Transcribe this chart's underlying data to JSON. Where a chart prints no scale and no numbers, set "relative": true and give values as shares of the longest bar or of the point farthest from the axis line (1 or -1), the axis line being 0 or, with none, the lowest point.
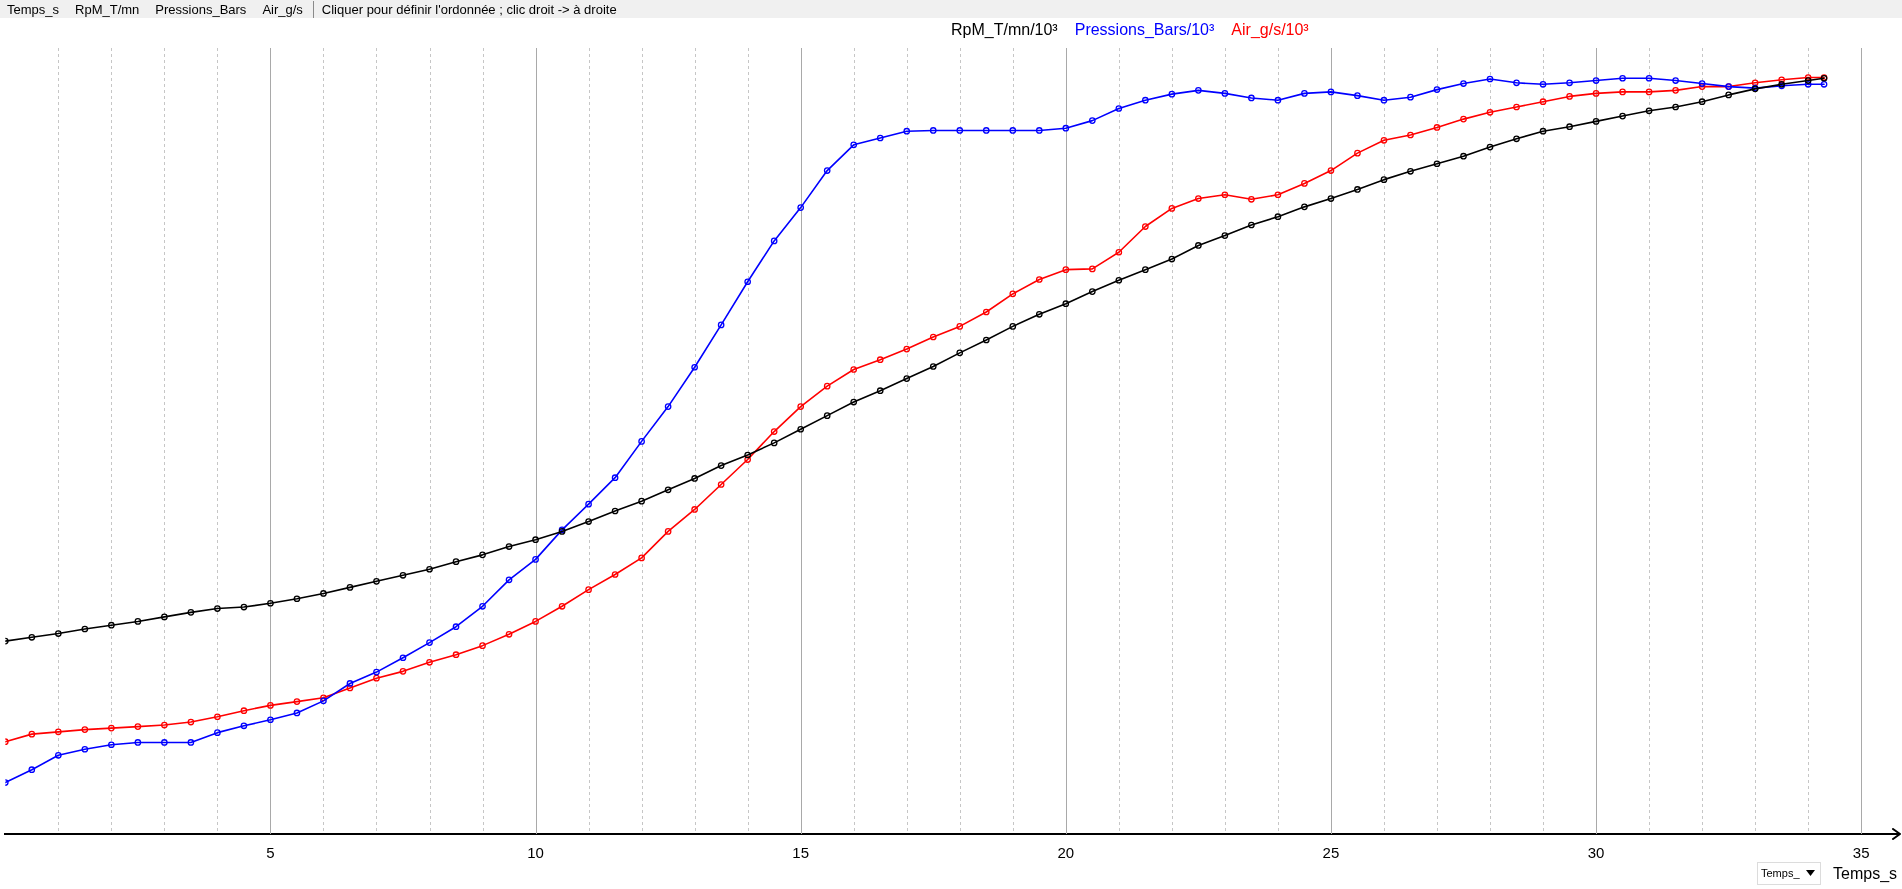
{
  "chart_data": {
    "type": "line",
    "xlabel": "Temps_s",
    "annotations": [
      "Temps_s",
      "RpM_T/mn",
      "Pressions_Bars",
      "Air_g/s",
      "Cliquer pour définir l'ordonnée ; clic droit -> à droite",
      "Temps_"
    ],
    "relative": true,
    "x": [
      0,
      0.5,
      1,
      1.5,
      2,
      2.5,
      3,
      3.5,
      4,
      4.5,
      5,
      5.5,
      6,
      6.5,
      7,
      7.5,
      8,
      8.5,
      9,
      9.5,
      10,
      10.5,
      11,
      11.5,
      12,
      12.5,
      13,
      13.5,
      14,
      14.5,
      15,
      15.5,
      16,
      16.5,
      17,
      17.5,
      18,
      18.5,
      19,
      19.5,
      20,
      20.5,
      21,
      21.5,
      22,
      22.5,
      23,
      23.5,
      24,
      24.5,
      25,
      25.5,
      26,
      26.5,
      27,
      27.5,
      28,
      28.5,
      29,
      29.5,
      30,
      30.5,
      31,
      31.5,
      32,
      32.5,
      33,
      33.5,
      34,
      34.3
    ],
    "xlim": [
      0,
      35.6
    ],
    "xticks": [
      {
        "value": 1,
        "label": null
      },
      {
        "value": 2,
        "label": null
      },
      {
        "value": 3,
        "label": null
      },
      {
        "value": 4,
        "label": null
      },
      5,
      {
        "value": 6,
        "label": null
      },
      {
        "value": 7,
        "label": null
      },
      {
        "value": 8,
        "label": null
      },
      {
        "value": 9,
        "label": null
      },
      10,
      {
        "value": 11,
        "label": null
      },
      {
        "value": 12,
        "label": null
      },
      {
        "value": 13,
        "label": null
      },
      {
        "value": 14,
        "label": null
      },
      15,
      {
        "value": 16,
        "label": null
      },
      {
        "value": 17,
        "label": null
      },
      {
        "value": 18,
        "label": null
      },
      {
        "value": 19,
        "label": null
      },
      20,
      {
        "value": 21,
        "label": null
      },
      {
        "value": 22,
        "label": null
      },
      {
        "value": 23,
        "label": null
      },
      {
        "value": 24,
        "label": null
      },
      25,
      {
        "value": 26,
        "label": null
      },
      {
        "value": 27,
        "label": null
      },
      {
        "value": 28,
        "label": null
      },
      {
        "value": 29,
        "label": null
      },
      30,
      {
        "value": 31,
        "label": null
      },
      {
        "value": 32,
        "label": null
      },
      {
        "value": 33,
        "label": null
      },
      {
        "value": 34,
        "label": null
      },
      35
    ],
    "grid": "x",
    "legend": "top",
    "marker": "circle",
    "line_style": "solid",
    "series": [
      {
        "name": "RpM_T/mn/10³",
        "color": "#000000",
        "values": [
          0.255,
          0.26,
          0.265,
          0.271,
          0.276,
          0.281,
          0.287,
          0.293,
          0.298,
          0.3,
          0.305,
          0.311,
          0.318,
          0.326,
          0.334,
          0.342,
          0.35,
          0.36,
          0.369,
          0.38,
          0.389,
          0.4,
          0.413,
          0.427,
          0.44,
          0.455,
          0.47,
          0.487,
          0.501,
          0.517,
          0.535,
          0.553,
          0.571,
          0.586,
          0.602,
          0.618,
          0.636,
          0.653,
          0.671,
          0.687,
          0.701,
          0.717,
          0.732,
          0.746,
          0.76,
          0.778,
          0.791,
          0.805,
          0.816,
          0.829,
          0.84,
          0.852,
          0.865,
          0.876,
          0.886,
          0.896,
          0.908,
          0.919,
          0.929,
          0.935,
          0.942,
          0.949,
          0.956,
          0.961,
          0.968,
          0.977,
          0.985,
          0.991,
          0.996,
          0.999
        ]
      },
      {
        "name": "Pressions_Bars/10³",
        "color": "#0000ff",
        "values": [
          0.068,
          0.085,
          0.104,
          0.112,
          0.118,
          0.121,
          0.121,
          0.121,
          0.134,
          0.143,
          0.151,
          0.16,
          0.176,
          0.199,
          0.214,
          0.233,
          0.253,
          0.274,
          0.301,
          0.336,
          0.363,
          0.402,
          0.436,
          0.471,
          0.519,
          0.565,
          0.617,
          0.673,
          0.73,
          0.784,
          0.828,
          0.877,
          0.911,
          0.92,
          0.929,
          0.93,
          0.93,
          0.93,
          0.93,
          0.93,
          0.933,
          0.943,
          0.959,
          0.97,
          0.978,
          0.983,
          0.979,
          0.973,
          0.97,
          0.979,
          0.981,
          0.976,
          0.97,
          0.974,
          0.984,
          0.992,
          0.998,
          0.993,
          0.991,
          0.993,
          0.996,
          0.999,
          0.999,
          0.996,
          0.992,
          0.988,
          0.986,
          0.989,
          0.991,
          0.991
        ]
      },
      {
        "name": "Air_g/s/10³",
        "color": "#ff0000",
        "values": [
          0.122,
          0.132,
          0.135,
          0.138,
          0.14,
          0.142,
          0.144,
          0.148,
          0.155,
          0.163,
          0.17,
          0.175,
          0.18,
          0.193,
          0.206,
          0.215,
          0.227,
          0.237,
          0.249,
          0.264,
          0.281,
          0.301,
          0.323,
          0.343,
          0.365,
          0.4,
          0.429,
          0.462,
          0.495,
          0.532,
          0.565,
          0.592,
          0.614,
          0.627,
          0.641,
          0.657,
          0.671,
          0.69,
          0.714,
          0.733,
          0.746,
          0.747,
          0.769,
          0.803,
          0.827,
          0.84,
          0.845,
          0.839,
          0.845,
          0.86,
          0.877,
          0.9,
          0.917,
          0.924,
          0.934,
          0.945,
          0.954,
          0.961,
          0.968,
          0.975,
          0.979,
          0.981,
          0.981,
          0.983,
          0.988,
          0.988,
          0.993,
          0.997,
          1.0,
          1.0
        ]
      }
    ]
  }
}
